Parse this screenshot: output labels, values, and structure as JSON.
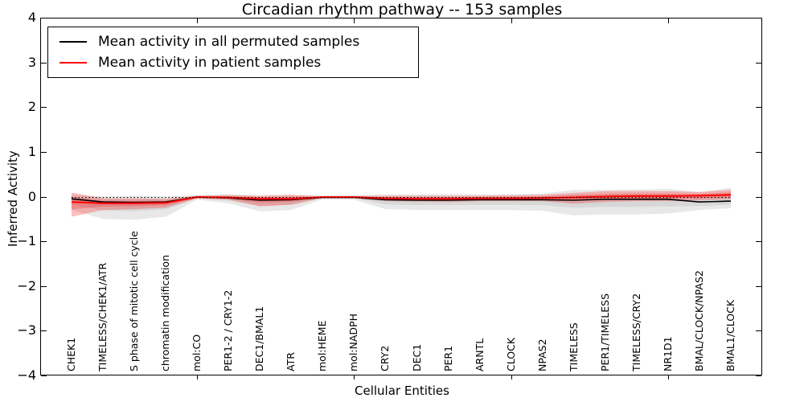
{
  "title": "Circadian rhythm pathway -- 153 samples",
  "axes": {
    "xlabel": "Cellular Entities",
    "ylabel": "Inferred Activity"
  },
  "legend": {
    "items": [
      {
        "label": "Mean activity in all permuted samples",
        "color": "#000000"
      },
      {
        "label": "Mean activity in patient samples",
        "color": "#ff0000"
      }
    ]
  },
  "chart_data": {
    "type": "line",
    "title": "Circadian rhythm pathway -- 153 samples",
    "xlabel": "Cellular Entities",
    "ylabel": "Inferred Activity",
    "grid": false,
    "legend_position": "upper left",
    "xlim": [
      0,
      23
    ],
    "ylim": [
      -4,
      4
    ],
    "x_tick_values": [
      5,
      10,
      15,
      20
    ],
    "y_ticks": [
      {
        "value": 4,
        "label": "4"
      },
      {
        "value": 3,
        "label": "3"
      },
      {
        "value": 2,
        "label": "2"
      },
      {
        "value": 1,
        "label": "1"
      },
      {
        "value": 0,
        "label": "0"
      },
      {
        "value": -1,
        "label": "−1"
      },
      {
        "value": -2,
        "label": "−2"
      },
      {
        "value": -3,
        "label": "−3"
      },
      {
        "value": -4,
        "label": "−4"
      }
    ],
    "categories": [
      "CHEK1",
      "TIMELESS/CHEK1/ATR",
      "S phase of mitotic cell cycle",
      "chromatin modification",
      "mol:CO",
      "PER1-2 / CRY1-2",
      "DEC1/BMAL1",
      "ATR",
      "mol:HEME",
      "mol:NADPH",
      "CRY2",
      "DEC1",
      "PER1",
      "ARNTL",
      "CLOCK",
      "NPAS2",
      "TIMELESS",
      "PER1/TIMELESS",
      "TIMELESS/CRY2",
      "NR1D1",
      "BMAL/CLOCK/NPAS2",
      "BMAL1/CLOCK"
    ],
    "x": [
      1,
      2,
      3,
      4,
      5,
      6,
      7,
      8,
      9,
      10,
      11,
      12,
      13,
      14,
      15,
      16,
      17,
      18,
      19,
      20,
      21,
      22
    ],
    "reference_line": {
      "value": -0.02,
      "style": "dotted",
      "color": "#000000"
    },
    "series": [
      {
        "name": "permuted-mean-line",
        "label": "Mean activity in all permuted samples",
        "color": "#000000",
        "width": 1.6,
        "values": [
          -0.05,
          -0.12,
          -0.13,
          -0.12,
          -0.01,
          -0.03,
          -0.08,
          -0.07,
          -0.02,
          -0.02,
          -0.07,
          -0.08,
          -0.08,
          -0.07,
          -0.07,
          -0.07,
          -0.08,
          -0.06,
          -0.06,
          -0.06,
          -0.12,
          -0.1
        ]
      },
      {
        "name": "patient-mean-line",
        "label": "Mean activity in patient samples",
        "color": "#ff0000",
        "width": 2,
        "values": [
          -0.12,
          -0.15,
          -0.15,
          -0.14,
          -0.01,
          -0.02,
          -0.05,
          -0.05,
          -0.01,
          -0.01,
          -0.04,
          -0.05,
          -0.05,
          -0.04,
          -0.04,
          -0.03,
          -0.02,
          0.0,
          0.01,
          0.01,
          0.02,
          0.04
        ]
      }
    ],
    "bands": [
      {
        "name": "permuted-band-outer",
        "fill": "rgba(0,0,0,0.09)",
        "upper": [
          0.05,
          0.0,
          0.02,
          0.0,
          0.03,
          0.06,
          0.02,
          0.03,
          0.02,
          0.03,
          0.05,
          0.05,
          0.06,
          0.05,
          0.05,
          0.07,
          0.15,
          0.15,
          0.16,
          0.17,
          0.1,
          0.2
        ],
        "lower": [
          -0.3,
          -0.5,
          -0.52,
          -0.45,
          -0.07,
          -0.15,
          -0.33,
          -0.3,
          -0.06,
          -0.07,
          -0.28,
          -0.3,
          -0.3,
          -0.3,
          -0.3,
          -0.32,
          -0.42,
          -0.4,
          -0.4,
          -0.38,
          -0.3,
          -0.26
        ]
      },
      {
        "name": "permuted-band-inner",
        "fill": "rgba(0,0,0,0.07)",
        "upper": [
          0.0,
          -0.06,
          -0.055,
          -0.06,
          0.01,
          0.015,
          -0.03,
          -0.02,
          0.0,
          0.005,
          -0.01,
          -0.015,
          -0.01,
          -0.01,
          -0.01,
          0.0,
          0.035,
          0.045,
          0.05,
          0.055,
          -0.01,
          0.05
        ],
        "lower": [
          -0.175,
          -0.31,
          -0.325,
          -0.285,
          -0.04,
          -0.09,
          -0.205,
          -0.185,
          -0.04,
          -0.045,
          -0.175,
          -0.19,
          -0.19,
          -0.185,
          -0.185,
          -0.195,
          -0.25,
          -0.23,
          -0.23,
          -0.22,
          -0.21,
          -0.18
        ]
      },
      {
        "name": "patient-band-outer",
        "fill": "rgba(255,0,0,0.25)",
        "upper": [
          0.09,
          -0.04,
          -0.04,
          -0.05,
          0.02,
          0.03,
          0.02,
          0.04,
          0.01,
          0.01,
          0.02,
          0.02,
          0.02,
          0.02,
          0.03,
          0.04,
          0.08,
          0.12,
          0.12,
          0.12,
          0.1,
          0.15
        ],
        "lower": [
          -0.45,
          -0.3,
          -0.28,
          -0.25,
          -0.04,
          -0.07,
          -0.22,
          -0.18,
          -0.03,
          -0.03,
          -0.1,
          -0.11,
          -0.12,
          -0.1,
          -0.1,
          -0.1,
          -0.16,
          -0.12,
          -0.1,
          -0.1,
          -0.08,
          -0.06
        ]
      },
      {
        "name": "patient-band-inner",
        "fill": "rgba(255,0,0,0.20)",
        "upper": [
          -0.015,
          -0.095,
          -0.095,
          -0.095,
          0.005,
          0.005,
          -0.015,
          -0.005,
          0.0,
          0.0,
          -0.01,
          -0.015,
          -0.015,
          -0.01,
          -0.005,
          0.005,
          0.03,
          0.06,
          0.065,
          0.065,
          0.06,
          0.095
        ],
        "lower": [
          -0.285,
          -0.225,
          -0.215,
          -0.195,
          -0.025,
          -0.045,
          -0.135,
          -0.115,
          -0.02,
          -0.02,
          -0.07,
          -0.08,
          -0.085,
          -0.07,
          -0.07,
          -0.065,
          -0.09,
          -0.06,
          -0.045,
          -0.045,
          -0.03,
          -0.01
        ]
      }
    ]
  }
}
